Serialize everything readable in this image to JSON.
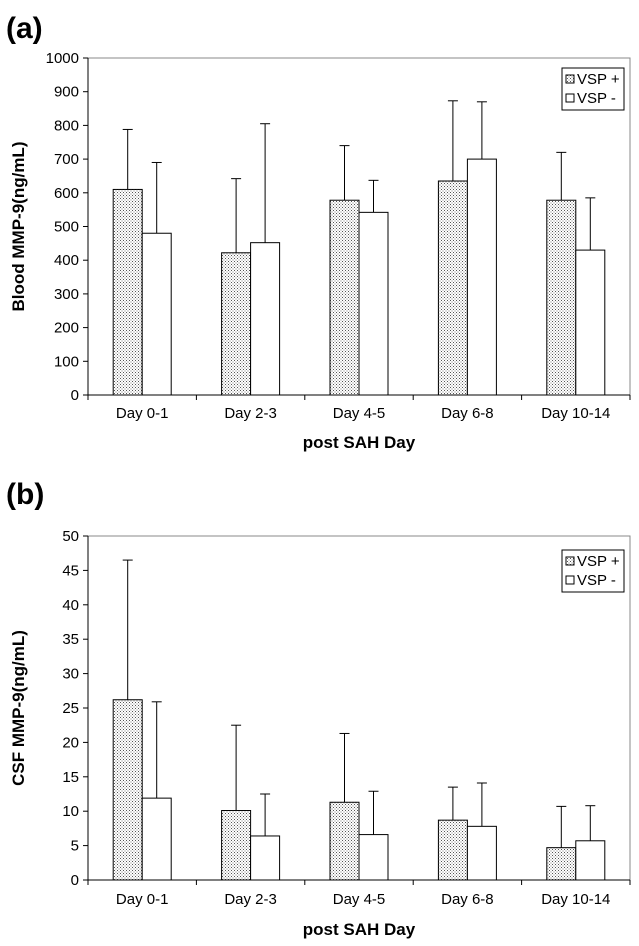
{
  "figure": {
    "charts": [
      {
        "panel_label": "(a)"
      },
      {
        "panel_label": "(b)"
      }
    ]
  },
  "colors": {
    "vsp_plus_fill": "#cfcfcf",
    "vsp_minus_fill": "#ffffff",
    "stroke": "#000000"
  },
  "chart_data": [
    {
      "type": "bar",
      "title": "",
      "xlabel": "post SAH Day",
      "ylabel": "Blood MMP-9(ng/mL)",
      "categories": [
        "Day 0-1",
        "Day 2-3",
        "Day 4-5",
        "Day 6-8",
        "Day 10-14"
      ],
      "ylim": [
        0,
        1000
      ],
      "yticks": [
        0,
        100,
        200,
        300,
        400,
        500,
        600,
        700,
        800,
        900,
        1000
      ],
      "grid": false,
      "legend_position": "top-right",
      "error_bars": "upper",
      "series": [
        {
          "name": "VSP +",
          "values": [
            610,
            422,
            578,
            635,
            578
          ],
          "errors": [
            178,
            220,
            162,
            238,
            142
          ]
        },
        {
          "name": "VSP -",
          "values": [
            480,
            452,
            542,
            700,
            430
          ],
          "errors": [
            210,
            353,
            95,
            170,
            155
          ]
        }
      ]
    },
    {
      "type": "bar",
      "title": "",
      "xlabel": "post SAH Day",
      "ylabel": "CSF MMP-9(ng/mL)",
      "categories": [
        "Day 0-1",
        "Day 2-3",
        "Day 4-5",
        "Day 6-8",
        "Day 10-14"
      ],
      "ylim": [
        0,
        50
      ],
      "yticks": [
        0,
        5,
        10,
        15,
        20,
        25,
        30,
        35,
        40,
        45,
        50
      ],
      "grid": false,
      "legend_position": "top-right",
      "error_bars": "upper",
      "series": [
        {
          "name": "VSP +",
          "values": [
            26.2,
            10.1,
            11.3,
            8.7,
            4.7
          ],
          "errors": [
            20.3,
            12.4,
            10.0,
            4.8,
            6.0
          ]
        },
        {
          "name": "VSP -",
          "values": [
            11.9,
            6.4,
            6.6,
            7.8,
            5.7
          ],
          "errors": [
            14.0,
            6.1,
            6.3,
            6.3,
            5.1
          ]
        }
      ]
    }
  ]
}
